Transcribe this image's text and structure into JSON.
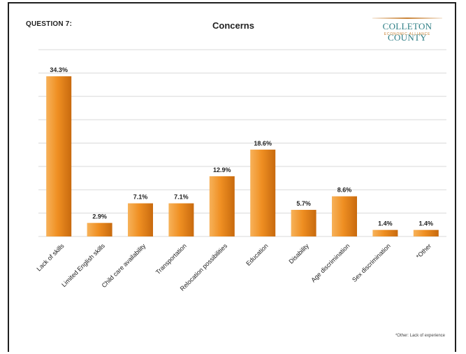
{
  "slide": {
    "question_label": "QUESTION 7:",
    "logo_name": "COLLETON COUNTY",
    "logo_sub": "ECONOMIC ALLIANCE",
    "footnote": "*Other: Lack of experience"
  },
  "colors": {
    "bar_top": "#f7b25a",
    "bar_mid": "#ef8f22",
    "bar_bottom": "#c86a0e",
    "gridline": "#d9d9d9"
  },
  "chart_data": {
    "type": "bar",
    "title": "Concerns",
    "categories": [
      "Lack of skills",
      "Limited English skills",
      "Child care availability",
      "Transportation",
      "Relocation possibilities",
      "Education",
      "Disability",
      "Age discrimination",
      "Sex discrimination",
      "*Other"
    ],
    "values": [
      34.3,
      2.9,
      7.1,
      7.1,
      12.9,
      18.6,
      5.7,
      8.6,
      1.4,
      1.4
    ],
    "value_labels": [
      "34.3%",
      "2.9%",
      "7.1%",
      "7.1%",
      "12.9%",
      "18.6%",
      "5.7%",
      "8.6%",
      "1.4%",
      "1.4%"
    ],
    "ylim": [
      0,
      40
    ],
    "grid": true,
    "legend": "none"
  }
}
